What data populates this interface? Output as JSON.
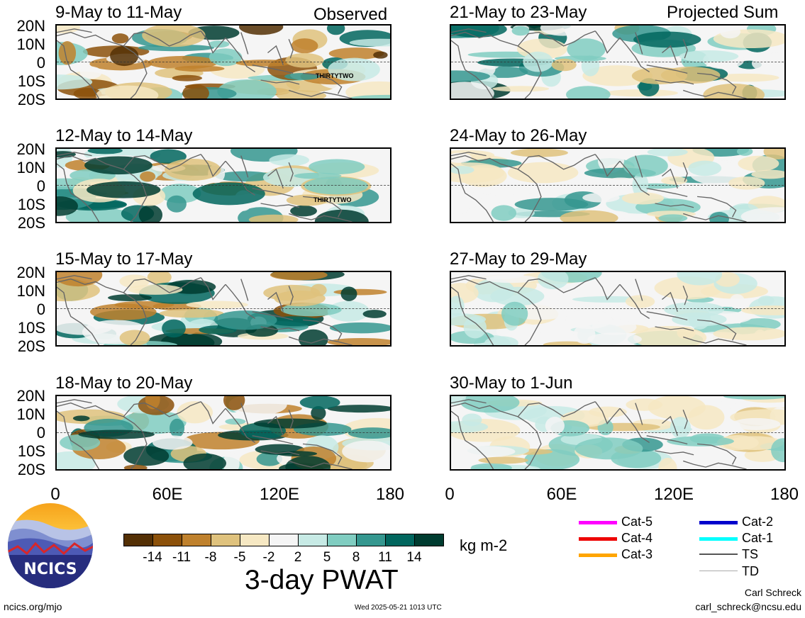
{
  "header": {
    "observed_label": "Observed",
    "projected_label": "Projected Sum"
  },
  "panels": {
    "observed": [
      "9-May to 11-May",
      "12-May to 14-May",
      "15-May to 17-May",
      "18-May to 20-May"
    ],
    "projected": [
      "21-May to 23-May",
      "24-May to 26-May",
      "27-May to 29-May",
      "30-May to 1-Jun"
    ]
  },
  "axes": {
    "lat_ticks": [
      "20N",
      "10N",
      "0",
      "10S",
      "20S"
    ],
    "lon_ticks": [
      "0",
      "60E",
      "120E",
      "180"
    ]
  },
  "storm": {
    "name": "THIRTYTWO"
  },
  "colorbar": {
    "ticks": [
      "-14",
      "-11",
      "-8",
      "-5",
      "-2",
      "2",
      "5",
      "8",
      "11",
      "14"
    ],
    "colors": [
      "#543005",
      "#8c510a",
      "#bf812d",
      "#dfc27d",
      "#f6e8c3",
      "#f5f5f5",
      "#c7eae5",
      "#80cdc1",
      "#35978f",
      "#01665e",
      "#003c30"
    ],
    "units": "kg m-2",
    "title": "3-day PWAT"
  },
  "legend": [
    {
      "label": "Cat-5",
      "color": "#ff00ff"
    },
    {
      "label": "Cat-4",
      "color": "#ee0000"
    },
    {
      "label": "Cat-3",
      "color": "#ffa500"
    },
    {
      "label": "Cat-2",
      "color": "#0000cc"
    },
    {
      "label": "Cat-1",
      "color": "#00ffff"
    },
    {
      "label": "TS",
      "color": "#555555"
    },
    {
      "label": "TD",
      "color": "#aaaaaa"
    }
  ],
  "footer": {
    "logo_text": "NCICS",
    "site": "ncics.org/mjo",
    "timestamp": "Wed 2025-05-21 1013 UTC",
    "author": "Carl Schreck",
    "email": "carl_schreck@ncsu.edu"
  }
}
